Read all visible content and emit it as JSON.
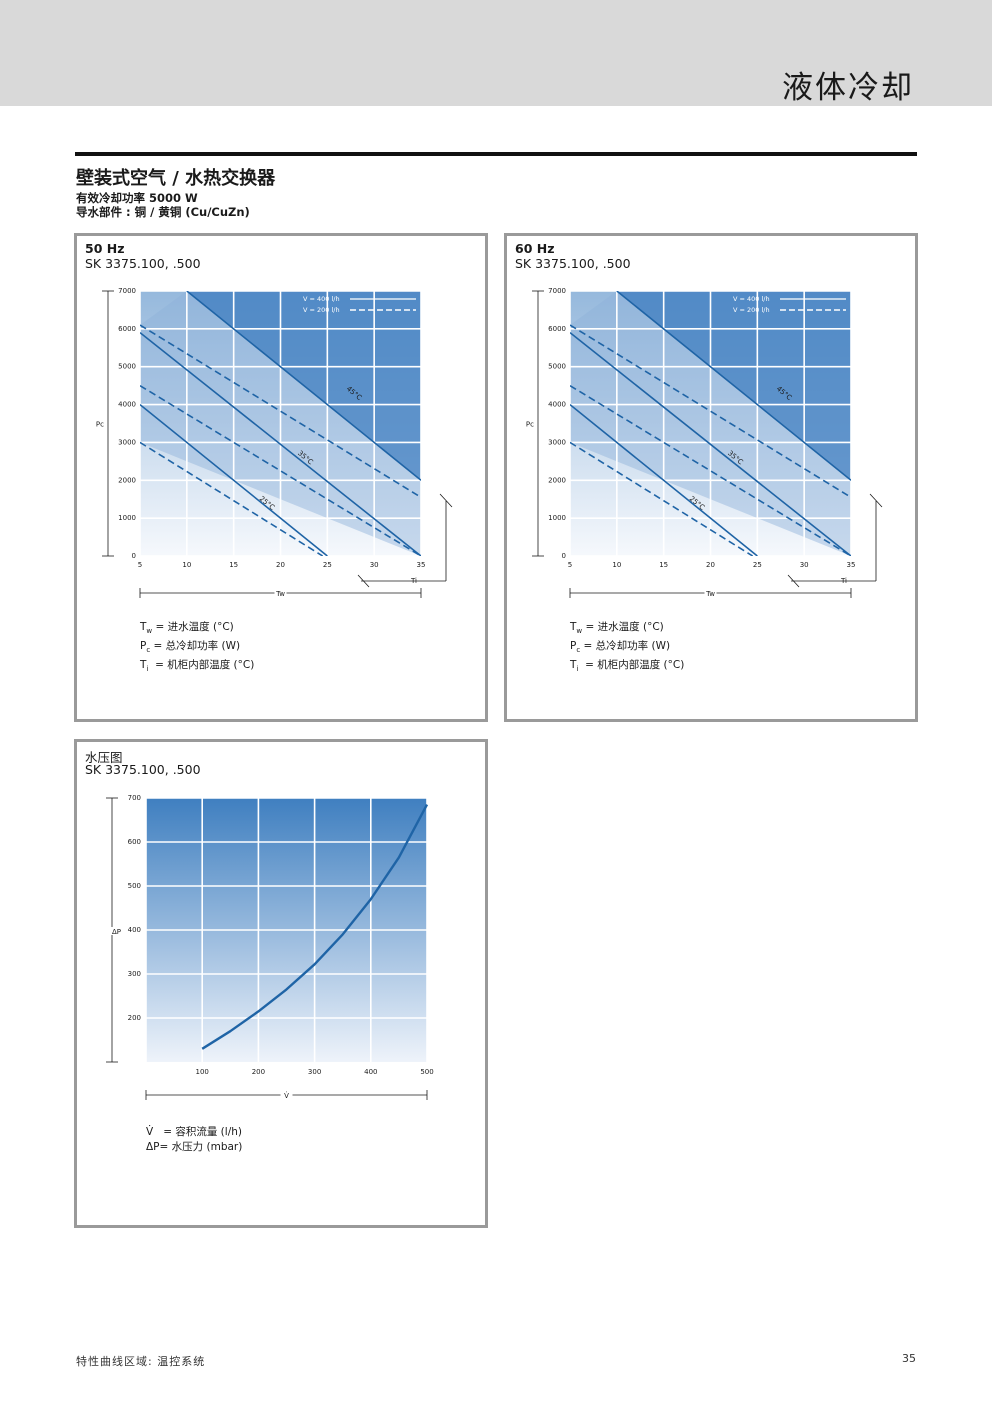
{
  "header": {
    "chapter": "液体冷却"
  },
  "title": {
    "main": "壁装式空气 / 水热交换器",
    "line1": "有效冷却功率 5000 W",
    "line2": "导水部件 : 铜 / 黄铜 (Cu/CuZn)"
  },
  "panels": [
    {
      "title": "50 Hz",
      "model": "SK 3375.100, .500"
    },
    {
      "title": "60 Hz",
      "model": "SK 3375.100, .500"
    },
    {
      "title": "水压图",
      "model": "SK 3375.100, .500"
    }
  ],
  "legend_main": {
    "tw": "= 进水温度 (°C)",
    "pc": "= 总冷却功率 (W)",
    "ti": "= 机柜内部温度 (°C)"
  },
  "legend_pressure": {
    "v": "= 容积流量 (l/h)",
    "dp": "= 水压力 (mbar)"
  },
  "footer": {
    "left": "特性曲线区域: 温控系统",
    "page": "35"
  },
  "colors": {
    "line": "#1f64a6",
    "grad_top": "#3f7fc0",
    "grad_bottom": "#eef3fa",
    "panel_border": "#9a9a9a"
  },
  "chart_data": [
    {
      "type": "line",
      "ylabel": "Pc",
      "xlabel": "Tw",
      "x2label": "Ti",
      "x_ticks": [
        5,
        10,
        15,
        20,
        25,
        30,
        35
      ],
      "y_ticks": [
        0,
        1000,
        2000,
        3000,
        4000,
        5000,
        6000,
        7000
      ],
      "xlim": [
        5,
        35
      ],
      "ylim": [
        0,
        7000
      ],
      "legend": [
        "V = 400 l/h",
        "V = 200 l/h"
      ],
      "series": [
        {
          "name": "V = 400 l/h",
          "label": "45°C",
          "x": [
            10,
            35
          ],
          "y": [
            7000,
            2000
          ]
        },
        {
          "name": "V = 200 l/h",
          "label": "45°C",
          "x": [
            5,
            35
          ],
          "y": [
            6100,
            1550
          ]
        },
        {
          "name": "V = 400 l/h",
          "label": "35°C",
          "x": [
            5,
            35
          ],
          "y": [
            5900,
            0
          ]
        },
        {
          "name": "V = 200 l/h",
          "label": "35°C",
          "x": [
            5,
            35
          ],
          "y": [
            4500,
            0
          ]
        },
        {
          "name": "V = 400 l/h",
          "label": "25°C",
          "x": [
            5,
            25
          ],
          "y": [
            4000,
            0
          ]
        },
        {
          "name": "V = 200 l/h",
          "label": "25°C",
          "x": [
            5,
            24.5
          ],
          "y": [
            3000,
            0
          ]
        }
      ]
    },
    {
      "type": "line",
      "ylabel": "Pc",
      "xlabel": "Tw",
      "x2label": "Ti",
      "x_ticks": [
        5,
        10,
        15,
        20,
        25,
        30,
        35
      ],
      "y_ticks": [
        0,
        1000,
        2000,
        3000,
        4000,
        5000,
        6000,
        7000
      ],
      "xlim": [
        5,
        35
      ],
      "ylim": [
        0,
        7000
      ],
      "legend": [
        "V = 400 l/h",
        "V = 200 l/h"
      ],
      "series": [
        {
          "name": "V = 400 l/h",
          "label": "45°C",
          "x": [
            10,
            35
          ],
          "y": [
            7000,
            2000
          ]
        },
        {
          "name": "V = 200 l/h",
          "label": "45°C",
          "x": [
            5,
            35
          ],
          "y": [
            6100,
            1550
          ]
        },
        {
          "name": "V = 400 l/h",
          "label": "35°C",
          "x": [
            5,
            35
          ],
          "y": [
            5900,
            0
          ]
        },
        {
          "name": "V = 200 l/h",
          "label": "35°C",
          "x": [
            5,
            35
          ],
          "y": [
            4500,
            0
          ]
        },
        {
          "name": "V = 400 l/h",
          "label": "25°C",
          "x": [
            5,
            25
          ],
          "y": [
            4000,
            0
          ]
        },
        {
          "name": "V = 200 l/h",
          "label": "25°C",
          "x": [
            5,
            24.5
          ],
          "y": [
            3000,
            0
          ]
        }
      ]
    },
    {
      "type": "line",
      "ylabel": "ΔP",
      "xlabel": "V̇",
      "x_ticks": [
        100,
        200,
        300,
        400,
        500
      ],
      "y_ticks": [
        200,
        300,
        400,
        500,
        600,
        700
      ],
      "xlim": [
        0,
        500
      ],
      "ylim": [
        100,
        700
      ],
      "series": [
        {
          "x": [
            100,
            150,
            200,
            250,
            300,
            350,
            400,
            450,
            500
          ],
          "y": [
            130,
            170,
            215,
            265,
            322,
            390,
            470,
            565,
            685
          ]
        }
      ]
    }
  ]
}
